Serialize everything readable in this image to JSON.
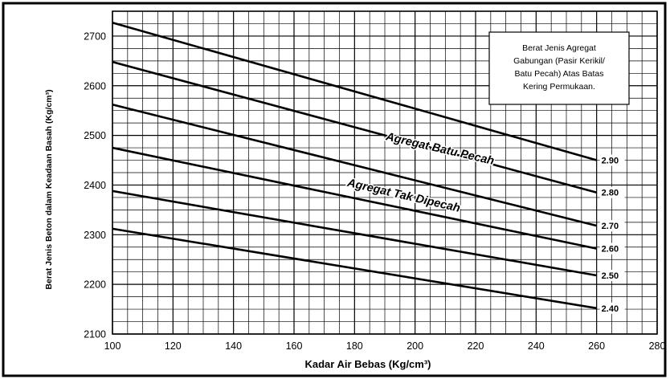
{
  "chart_data": {
    "type": "line",
    "xlabel": "Kadar Air Bebas (Kg/cm³)",
    "ylabel": "Berat Jenis Beton dalam Keadaan Basah (Kg/cm³)",
    "xlim": [
      100,
      280
    ],
    "ylim": [
      2100,
      2750
    ],
    "x_ticks": [
      100,
      120,
      140,
      160,
      180,
      200,
      220,
      240,
      260,
      280
    ],
    "y_ticks": [
      2100,
      2200,
      2300,
      2400,
      2500,
      2600,
      2700
    ],
    "grid": true,
    "x": [
      100,
      260
    ],
    "series": [
      {
        "name": "2.90",
        "values": [
          2727,
          2450
        ]
      },
      {
        "name": "2.80",
        "values": [
          2648,
          2385
        ]
      },
      {
        "name": "2.70",
        "values": [
          2562,
          2318
        ]
      },
      {
        "name": "2.60",
        "values": [
          2475,
          2272
        ]
      },
      {
        "name": "2.50",
        "values": [
          2388,
          2218
        ]
      },
      {
        "name": "2.40",
        "values": [
          2312,
          2152
        ]
      }
    ],
    "legend": {
      "placement": "top-right",
      "lines": [
        "Berat Jenis Agregat",
        "Gabungan (Pasir Kerikil/",
        "Batu Pecah) Atas Batas",
        "Kering Permukaan."
      ]
    },
    "annotations": [
      {
        "text": "Agregat Batu Pecah",
        "x": 208,
        "y": 2466,
        "angle": 13
      },
      {
        "text": "Agregat Tak Dipecah",
        "x": 196,
        "y": 2372,
        "angle": 13
      }
    ]
  }
}
